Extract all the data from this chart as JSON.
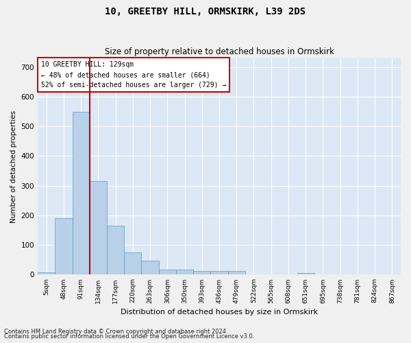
{
  "title1": "10, GREETBY HILL, ORMSKIRK, L39 2DS",
  "title2": "Size of property relative to detached houses in Ormskirk",
  "xlabel": "Distribution of detached houses by size in Ormskirk",
  "ylabel": "Number of detached properties",
  "footnote1": "Contains HM Land Registry data © Crown copyright and database right 2024.",
  "footnote2": "Contains public sector information licensed under the Open Government Licence v3.0.",
  "annotation_line1": "10 GREETBY HILL: 129sqm",
  "annotation_line2": "← 48% of detached houses are smaller (664)",
  "annotation_line3": "52% of semi-detached houses are larger (729) →",
  "bar_values": [
    8,
    190,
    548,
    316,
    165,
    76,
    47,
    18,
    18,
    13,
    12,
    13,
    0,
    0,
    0,
    5,
    0,
    0,
    0,
    0,
    0
  ],
  "categories": [
    "5sqm",
    "48sqm",
    "91sqm",
    "134sqm",
    "177sqm",
    "220sqm",
    "263sqm",
    "306sqm",
    "350sqm",
    "393sqm",
    "436sqm",
    "479sqm",
    "522sqm",
    "565sqm",
    "608sqm",
    "651sqm",
    "695sqm",
    "738sqm",
    "781sqm",
    "824sqm",
    "867sqm"
  ],
  "bar_color": "#b8d0e8",
  "bar_edge_color": "#5a9cc5",
  "bg_color": "#dce8f5",
  "grid_color": "#ffffff",
  "vline_x": 2.5,
  "vline_color": "#cc0000",
  "annotation_box_color": "#cc0000",
  "fig_bg_color": "#f0f0f0",
  "ylim": [
    0,
    730
  ],
  "yticks": [
    0,
    100,
    200,
    300,
    400,
    500,
    600,
    700
  ]
}
